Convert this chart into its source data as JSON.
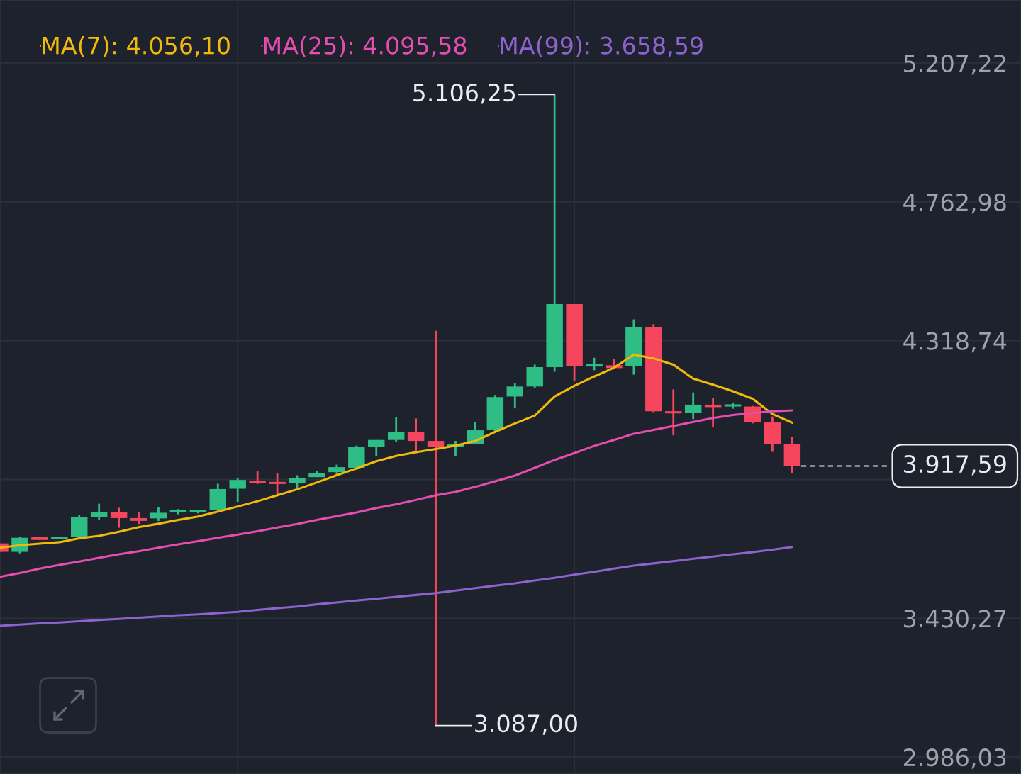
{
  "chart_data": {
    "type": "candlestick",
    "categories": [
      null,
      null,
      null,
      null,
      null,
      null,
      null,
      null,
      null,
      null,
      null,
      null,
      null,
      null,
      null,
      null,
      null,
      null,
      null,
      null,
      null,
      null,
      null,
      null,
      null,
      null,
      null,
      null,
      null,
      null,
      null,
      null,
      null,
      null,
      null,
      null,
      null,
      null,
      null,
      null,
      null
    ],
    "ohlc": [
      [
        3670,
        3670,
        3643,
        3643
      ],
      [
        3643,
        3692,
        3638,
        3688
      ],
      [
        3690,
        3692,
        3681,
        3681
      ],
      [
        3683,
        3690,
        3683,
        3690
      ],
      [
        3690,
        3762,
        3690,
        3754
      ],
      [
        3754,
        3797,
        3745,
        3769
      ],
      [
        3769,
        3784,
        3720,
        3751
      ],
      [
        3751,
        3769,
        3732,
        3742
      ],
      [
        3750,
        3786,
        3742,
        3768
      ],
      [
        3769,
        3780,
        3763,
        3777
      ],
      [
        3771,
        3778,
        3766,
        3778
      ],
      [
        3776,
        3861,
        3776,
        3844
      ],
      [
        3845,
        3879,
        3803,
        3873
      ],
      [
        3871,
        3901,
        3860,
        3864
      ],
      [
        3867,
        3895,
        3827,
        3860
      ],
      [
        3863,
        3888,
        3846,
        3880
      ],
      [
        3882,
        3901,
        3882,
        3895
      ],
      [
        3898,
        3922,
        3888,
        3914
      ],
      [
        3912,
        3983,
        3905,
        3980
      ],
      [
        3978,
        4001,
        3950,
        4001
      ],
      [
        4001,
        4074,
        3995,
        4026
      ],
      [
        4026,
        4070,
        3959,
        3998
      ],
      [
        3998,
        4350,
        3087.0,
        3980
      ],
      [
        3980,
        3998,
        3948,
        3988
      ],
      [
        3988,
        4059,
        3988,
        4032
      ],
      [
        4033,
        4145,
        4026,
        4138
      ],
      [
        4140,
        4183,
        4102,
        4172
      ],
      [
        4172,
        4242,
        4167,
        4234
      ],
      [
        4234,
        5106.25,
        4219,
        4436
      ],
      [
        4436,
        4436,
        4189,
        4237
      ],
      [
        4236,
        4264,
        4224,
        4243
      ],
      [
        4240,
        4261,
        4227,
        4231
      ],
      [
        4238,
        4387,
        4210,
        4361
      ],
      [
        4361,
        4372,
        4090,
        4093
      ],
      [
        4093,
        4163,
        4016,
        4086
      ],
      [
        4087,
        4153,
        4068,
        4114
      ],
      [
        4114,
        4136,
        4042,
        4106
      ],
      [
        4108,
        4121,
        4101,
        4115
      ],
      [
        4108,
        4110,
        4054,
        4057
      ],
      [
        4057,
        4076,
        3963,
        3988
      ],
      [
        3988,
        4010,
        3895,
        3917.59
      ]
    ],
    "colors": [
      "#f6465d",
      "#2ebd85",
      "#f6465d",
      "#2ebd85",
      "#2ebd85",
      "#2ebd85",
      "#f6465d",
      "#f6465d",
      "#2ebd85",
      "#2ebd85",
      "#2ebd85",
      "#2ebd85",
      "#2ebd85",
      "#f6465d",
      "#f6465d",
      "#2ebd85",
      "#2ebd85",
      "#2ebd85",
      "#2ebd85",
      "#2ebd85",
      "#2ebd85",
      "#f6465d",
      "#f6465d",
      "#2ebd85",
      "#2ebd85",
      "#2ebd85",
      "#2ebd85",
      "#2ebd85",
      "#2ebd85",
      "#f6465d",
      "#2ebd85",
      "#f6465d",
      "#2ebd85",
      "#f6465d",
      "#f6465d",
      "#2ebd85",
      "#f6465d",
      "#2ebd85",
      "#f6465d",
      "#f6465d",
      "#f6465d"
    ],
    "series": [
      {
        "name": "MA(7): 4.056,10",
        "type": "line",
        "color": "#f0b90b",
        "values": [
          3656,
          3664,
          3669,
          3674,
          3686,
          3694,
          3707,
          3722,
          3733,
          3745,
          3756,
          3772,
          3788,
          3805,
          3824,
          3843,
          3865,
          3888,
          3910,
          3933,
          3950,
          3962,
          3972,
          3983,
          3998,
          4027,
          4054,
          4079,
          4140,
          4174,
          4204,
          4232,
          4274,
          4262,
          4242,
          4197,
          4178,
          4157,
          4133,
          4084,
          4056.1
        ]
      },
      {
        "name": "MA(25): 4.095,58",
        "type": "line",
        "color": "#e64db0",
        "values": [
          3563,
          3575,
          3589,
          3601,
          3612,
          3624,
          3635,
          3645,
          3656,
          3667,
          3677,
          3688,
          3698,
          3709,
          3721,
          3732,
          3745,
          3757,
          3769,
          3783,
          3795,
          3809,
          3824,
          3835,
          3851,
          3869,
          3887,
          3912,
          3937,
          3959,
          3982,
          4001,
          4021,
          4033,
          4046,
          4059,
          4071,
          4081,
          4087,
          4093,
          4095.58
        ]
      },
      {
        "name": "MA(99): 3.658,59",
        "type": "line",
        "color": "#8e63cf",
        "values": [
          3406,
          3410,
          3414,
          3417,
          3421,
          3425,
          3428,
          3432,
          3436,
          3440,
          3443,
          3447,
          3451,
          3457,
          3463,
          3468,
          3475,
          3481,
          3487,
          3493,
          3499,
          3505,
          3511,
          3519,
          3527,
          3535,
          3542,
          3551,
          3560,
          3570,
          3579,
          3589,
          3599,
          3606,
          3613,
          3621,
          3628,
          3635,
          3642,
          3650,
          3658.59
        ]
      }
    ],
    "ylim": [
      2932,
      5409
    ],
    "yticks": [
      {
        "value": 2986.03,
        "label": "2.986,03"
      },
      {
        "value": 3430.27,
        "label": "3.430,27"
      },
      {
        "value": 3874.51,
        "label": null
      },
      {
        "value": 4318.74,
        "label": "4.318,74"
      },
      {
        "value": 4762.98,
        "label": "4.762,98"
      },
      {
        "value": 5207.22,
        "label": "5.207,22"
      }
    ],
    "tick_labels": "y",
    "grid": true,
    "legend": "top left",
    "ref_lines": [
      {
        "axis": "y",
        "value": 3917.59,
        "label": "3.917,59",
        "color": "#eaecef",
        "line_style": "dashed"
      }
    ],
    "annotations": [
      "5.106,25",
      "3.087,00"
    ]
  }
}
